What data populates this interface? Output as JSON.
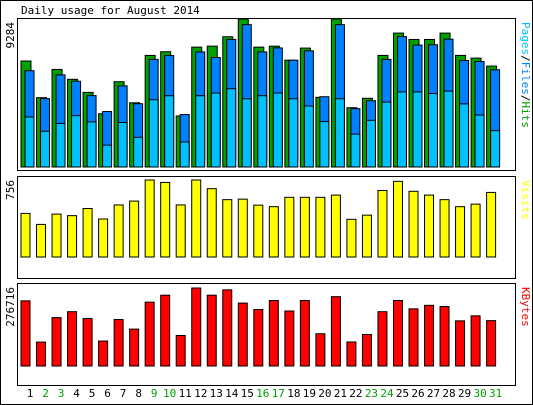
{
  "chart_data": {
    "type": "bar",
    "title": "Daily usage for August 2014",
    "categories": [
      "1",
      "2",
      "3",
      "4",
      "5",
      "6",
      "7",
      "8",
      "9",
      "10",
      "11",
      "12",
      "13",
      "14",
      "15",
      "16",
      "17",
      "18",
      "19",
      "20",
      "21",
      "22",
      "23",
      "24",
      "25",
      "26",
      "27",
      "28",
      "29",
      "30",
      "31"
    ],
    "weekend_days": [
      "2",
      "3",
      "9",
      "10",
      "16",
      "17",
      "23",
      "24",
      "30",
      "31"
    ],
    "colors": {
      "hits": "#00a000",
      "files": "#0080ff",
      "pages": "#00c0ff",
      "visits": "#ffff00",
      "kbytes": "#ff0000",
      "weekday_label": "#000000",
      "weekend_label": "#00a000",
      "right_label_traffic": [
        "#00c0ff",
        "#0080ff",
        "#00a000"
      ],
      "right_label_visits": "#ffff00",
      "right_label_kbytes": "#ff0000"
    },
    "panels": [
      {
        "id": "traffic",
        "max_label": "9284",
        "ylim": [
          0,
          9284
        ],
        "right_label_parts": [
          "Pages",
          "/",
          "Files",
          "/",
          "Hits"
        ],
        "series": [
          {
            "name": "Hits",
            "values": [
              6650,
              4350,
              6120,
              5500,
              4680,
              3340,
              5350,
              4030,
              7000,
              7230,
              3200,
              7520,
              7580,
              8170,
              9284,
              7520,
              7580,
              6700,
              7460,
              4370,
              9284,
              3720,
              4310,
              7000,
              8400,
              8000,
              8000,
              8400,
              7000,
              6830,
              6330
            ]
          },
          {
            "name": "Files",
            "values": [
              5600,
              3850,
              5340,
              4940,
              4040,
              3040,
              4650,
              3530,
              6310,
              6550,
              2850,
              6780,
              6430,
              7560,
              8490,
              6780,
              7030,
              6260,
              6850,
              3970,
              8490,
              3220,
              3720,
              6310,
              7740,
              7210,
              7230,
              7580,
              6240,
              6180,
              5660
            ]
          },
          {
            "name": "Pages",
            "values": [
              3140,
              2240,
              2730,
              3220,
              2830,
              1370,
              2790,
              1860,
              4220,
              4470,
              1570,
              4470,
              4640,
              4910,
              4280,
              4470,
              4640,
              4280,
              3830,
              2850,
              4280,
              2060,
              2930,
              4070,
              4710,
              4710,
              4610,
              4760,
              3960,
              3260,
              2280
            ]
          }
        ]
      },
      {
        "id": "visits",
        "max_label": "756",
        "ylim": [
          0,
          756
        ],
        "right_label": "Visits",
        "series": [
          {
            "name": "Visits",
            "values": [
              428,
              320,
              421,
              406,
              476,
              373,
              511,
              549,
              756,
              732,
              511,
              756,
              671,
              563,
              568,
              509,
              494,
              586,
              586,
              586,
              608,
              370,
              411,
              653,
              743,
              645,
              608,
              563,
              494,
              519,
              634
            ]
          }
        ]
      },
      {
        "id": "kbytes",
        "max_label": "276716",
        "ylim": [
          0,
          276716
        ],
        "right_label": "KBytes",
        "series": [
          {
            "name": "KBytes",
            "values": [
              231200,
              84800,
              171700,
              192700,
              168300,
              88600,
              164800,
              130900,
              226500,
              251200,
              108300,
              276716,
              251200,
              270200,
              223200,
              200500,
              232400,
              195100,
              232400,
              114400,
              246000,
              85300,
              111800,
              192700,
              232400,
              202800,
              215200,
              211000,
              160200,
              178000,
              161000
            ]
          }
        ]
      }
    ]
  }
}
